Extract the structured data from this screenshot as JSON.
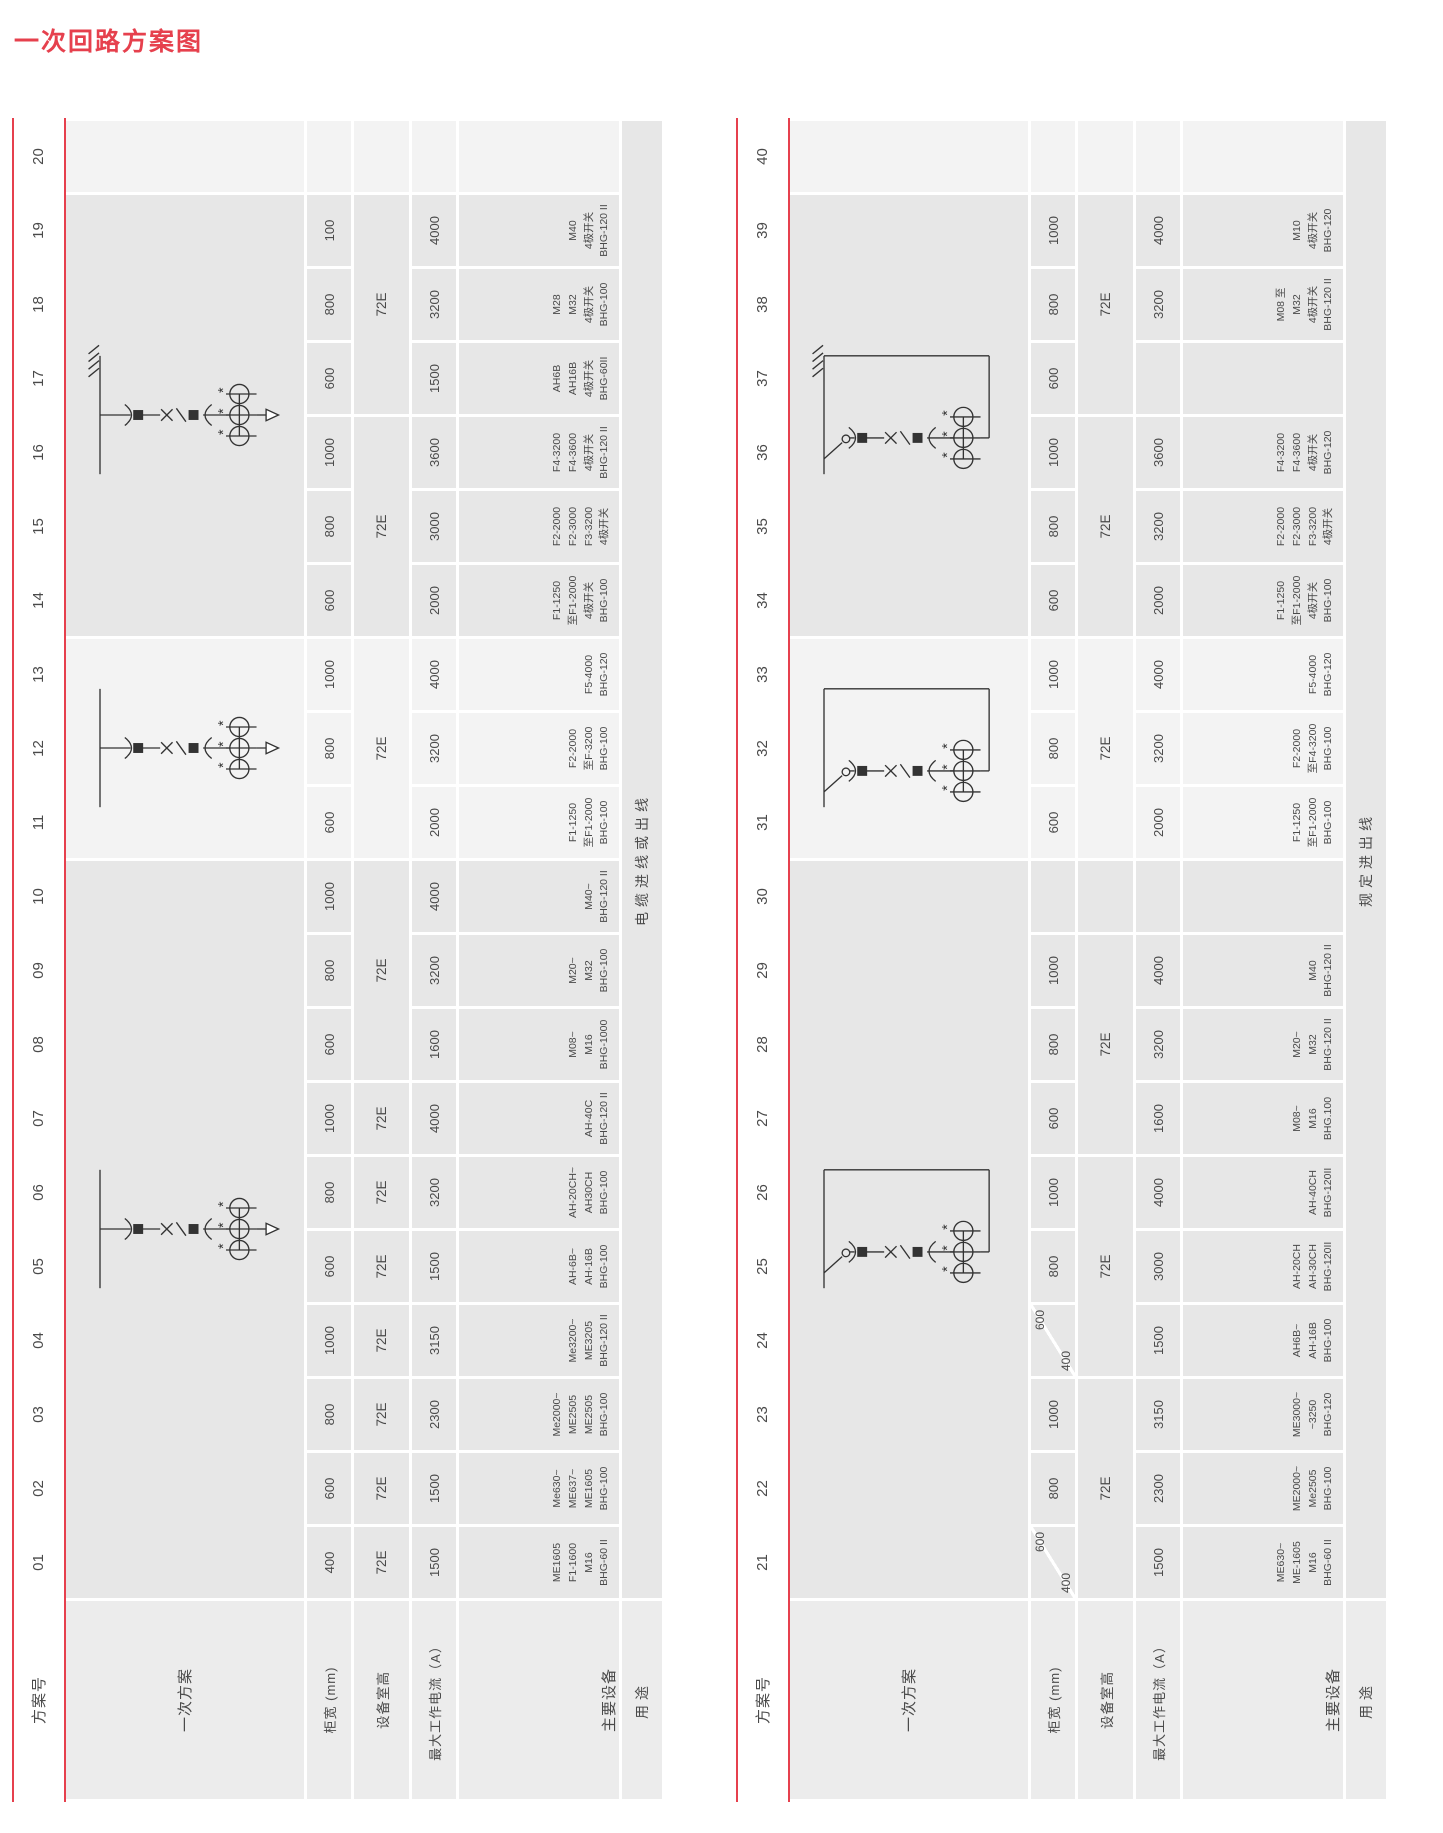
{
  "page": {
    "title": "一次回路方案图"
  },
  "colors": {
    "accent_red": "#e6404d",
    "band_dark": "#e7e7e7",
    "band_light": "#f3f3f3",
    "label_bg": "#ececec",
    "text": "#4a4a4a"
  },
  "row_labels": {
    "scheme_no": "方案号",
    "primary_scheme": "一次方案",
    "cabinet_width": "柜宽 (mm)",
    "equipment_room_height": "设备室高",
    "max_working_current": "最大工作电流（A）",
    "main_equipment": "主要设备",
    "usage": "用途"
  },
  "tables": [
    {
      "usage_text": "电缆进线或出线",
      "diagram_groups": [
        {
          "span": 10,
          "shade": "dark",
          "type": "feeder-arrow",
          "earth": false
        },
        {
          "span": 3,
          "shade": "light",
          "type": "feeder-arrow",
          "earth": false
        },
        {
          "span": 6,
          "shade": "dark",
          "type": "feeder-arrow",
          "earth": true
        },
        {
          "span": 1,
          "shade": "light",
          "type": "none",
          "earth": false
        }
      ],
      "height_cells": [
        {
          "span": 1,
          "shade": "dark",
          "text": "72E"
        },
        {
          "span": 1,
          "shade": "dark",
          "text": "72E"
        },
        {
          "span": 1,
          "shade": "dark",
          "text": "72E"
        },
        {
          "span": 1,
          "shade": "dark",
          "text": "72E"
        },
        {
          "span": 1,
          "shade": "dark",
          "text": "72E"
        },
        {
          "span": 1,
          "shade": "dark",
          "text": "72E"
        },
        {
          "span": 1,
          "shade": "dark",
          "text": "72E"
        },
        {
          "span": 3,
          "shade": "dark",
          "text": "72E"
        },
        {
          "span": 3,
          "shade": "light",
          "text": "72E"
        },
        {
          "span": 3,
          "shade": "dark",
          "text": "72E"
        },
        {
          "span": 3,
          "shade": "dark",
          "text": "72E"
        },
        {
          "span": 1,
          "shade": "light",
          "text": ""
        }
      ],
      "schemes": [
        {
          "no": "01",
          "width": "400",
          "current": "1500",
          "equipment": [
            "ME1605",
            "F1-1600",
            "M16",
            "BHG-60 II"
          ]
        },
        {
          "no": "02",
          "width": "600",
          "current": "1500",
          "equipment": [
            "Me630~",
            "ME637~",
            "ME1605",
            "BHG-100"
          ]
        },
        {
          "no": "03",
          "width": "800",
          "current": "2300",
          "equipment": [
            "Me2000~",
            "ME2505",
            "ME2505",
            "BHG-100"
          ]
        },
        {
          "no": "04",
          "width": "1000",
          "current": "3150",
          "equipment": [
            "Me3200~",
            "ME3205",
            "BHG-120 II"
          ]
        },
        {
          "no": "05",
          "width": "600",
          "current": "1500",
          "equipment": [
            "AH-6B~",
            "AH-16B",
            "BHG-100"
          ]
        },
        {
          "no": "06",
          "width": "800",
          "current": "3200",
          "equipment": [
            "AH-20CH~",
            "AH30CH",
            "BHG-100"
          ]
        },
        {
          "no": "07",
          "width": "1000",
          "current": "4000",
          "equipment": [
            "AH-40C",
            "BHG-120 II"
          ]
        },
        {
          "no": "08",
          "width": "600",
          "current": "1600",
          "equipment": [
            "M08~",
            "M16",
            "BHG-1000"
          ]
        },
        {
          "no": "09",
          "width": "800",
          "current": "3200",
          "equipment": [
            "M20~",
            "M32",
            "BHG-100"
          ]
        },
        {
          "no": "10",
          "width": "1000",
          "current": "4000",
          "equipment": [
            "M40~",
            "BHG-120 II"
          ]
        },
        {
          "no": "11",
          "width": "600",
          "current": "2000",
          "equipment": [
            "F1-1250",
            "至F1-2000",
            "BHG-100"
          ]
        },
        {
          "no": "12",
          "width": "800",
          "current": "3200",
          "equipment": [
            "F2-2000",
            "至F-3200",
            "BHG-100"
          ]
        },
        {
          "no": "13",
          "width": "1000",
          "current": "4000",
          "equipment": [
            "F5-4000",
            "BHG-120"
          ]
        },
        {
          "no": "14",
          "width": "600",
          "current": "2000",
          "equipment": [
            "F1-1250",
            "至F1-2000",
            "4极开关",
            "BHG-100"
          ]
        },
        {
          "no": "15",
          "width": "800",
          "current": "3000",
          "equipment": [
            "F2-2000",
            "F2-3000",
            "F3-3200",
            "4极开关"
          ]
        },
        {
          "no": "16",
          "width": "1000",
          "current": "3600",
          "equipment": [
            "F4-3200",
            "F4-3600",
            "4极开关",
            "BHG-120 II"
          ]
        },
        {
          "no": "17",
          "width": "600",
          "current": "1500",
          "equipment": [
            "AH6B",
            "AH16B",
            "4极开关",
            "BHG-60II"
          ]
        },
        {
          "no": "18",
          "width": "800",
          "current": "3200",
          "equipment": [
            "M28",
            "M32",
            "4极开关",
            "BHG-100"
          ]
        },
        {
          "no": "19",
          "width": "100",
          "current": "4000",
          "equipment": [
            "M40",
            "4极开关",
            "BHG-120 II"
          ]
        },
        {
          "no": "20",
          "width": "",
          "current": "",
          "equipment": []
        }
      ]
    },
    {
      "usage_text": "规定进出线",
      "diagram_groups": [
        {
          "span": 10,
          "shade": "dark",
          "type": "feeder-loop",
          "earth": false
        },
        {
          "span": 3,
          "shade": "light",
          "type": "feeder-loop",
          "earth": false
        },
        {
          "span": 6,
          "shade": "dark",
          "type": "feeder-loop",
          "earth": true
        },
        {
          "span": 1,
          "shade": "light",
          "type": "none",
          "earth": false
        }
      ],
      "height_cells": [
        {
          "span": 3,
          "shade": "dark",
          "text": "72E"
        },
        {
          "span": 3,
          "shade": "dark",
          "text": "72E"
        },
        {
          "span": 3,
          "shade": "dark",
          "text": "72E"
        },
        {
          "span": 1,
          "shade": "dark",
          "text": ""
        },
        {
          "span": 3,
          "shade": "light",
          "text": "72E"
        },
        {
          "span": 3,
          "shade": "dark",
          "text": "72E"
        },
        {
          "span": 3,
          "shade": "dark",
          "text": "72E"
        },
        {
          "span": 1,
          "shade": "light",
          "text": ""
        }
      ],
      "schemes": [
        {
          "no": "21",
          "width": "",
          "width_split": [
            "600",
            "400"
          ],
          "current": "1500",
          "equipment": [
            "ME630~",
            "ME-1605",
            "M16",
            "BHG-60 II"
          ]
        },
        {
          "no": "22",
          "width": "800",
          "current": "2300",
          "equipment": [
            "ME2000~",
            "Me2505",
            "BHG-100"
          ]
        },
        {
          "no": "23",
          "width": "1000",
          "current": "3150",
          "equipment": [
            "ME3000~",
            "~3250",
            "BHG-120"
          ]
        },
        {
          "no": "24",
          "width": "",
          "width_split": [
            "600",
            "400"
          ],
          "current": "1500",
          "equipment": [
            "AH6B~",
            "AH-16B",
            "BHG-100"
          ]
        },
        {
          "no": "25",
          "width": "800",
          "current": "3000",
          "equipment": [
            "AH-20CH",
            "AH-30CH",
            "BHG-120II"
          ]
        },
        {
          "no": "26",
          "width": "1000",
          "current": "4000",
          "equipment": [
            "AH-40CH",
            "BHG-120II"
          ]
        },
        {
          "no": "27",
          "width": "600",
          "current": "1600",
          "equipment": [
            "M08~",
            "M16",
            "BHG.100"
          ]
        },
        {
          "no": "28",
          "width": "800",
          "current": "3200",
          "equipment": [
            "M20~",
            "M32",
            "BHG-120 II"
          ]
        },
        {
          "no": "29",
          "width": "1000",
          "current": "4000",
          "equipment": [
            "M40",
            "BHG-120 II"
          ]
        },
        {
          "no": "30",
          "width": "",
          "current": "",
          "equipment": []
        },
        {
          "no": "31",
          "width": "600",
          "current": "2000",
          "equipment": [
            "F1-1250",
            "至F1-2000",
            "BHG-100"
          ]
        },
        {
          "no": "32",
          "width": "800",
          "current": "3200",
          "equipment": [
            "F2-2000",
            "至F4-3200",
            "BHG-100"
          ]
        },
        {
          "no": "33",
          "width": "1000",
          "current": "4000",
          "equipment": [
            "F5-4000",
            "BHG-120"
          ]
        },
        {
          "no": "34",
          "width": "600",
          "current": "2000",
          "equipment": [
            "F1-1250",
            "至F1-2000",
            "4极开关",
            "BHG-100"
          ]
        },
        {
          "no": "35",
          "width": "800",
          "current": "3200",
          "equipment": [
            "F2-2000",
            "F2-3000",
            "F3-3200",
            "4极开关"
          ]
        },
        {
          "no": "36",
          "width": "1000",
          "current": "3600",
          "equipment": [
            "F4-3200",
            "F4-3600",
            "4极开关",
            "BHG-120"
          ]
        },
        {
          "no": "37",
          "width": "600",
          "current": "",
          "equipment": []
        },
        {
          "no": "38",
          "width": "800",
          "current": "3200",
          "equipment": [
            "M08 至",
            "M32",
            "4极开关",
            "BHG-120 II"
          ]
        },
        {
          "no": "39",
          "width": "1000",
          "current": "4000",
          "equipment": [
            "M10",
            "4极开关",
            "BHG-120"
          ]
        },
        {
          "no": "40",
          "width": "",
          "current": "",
          "equipment": []
        }
      ]
    }
  ]
}
